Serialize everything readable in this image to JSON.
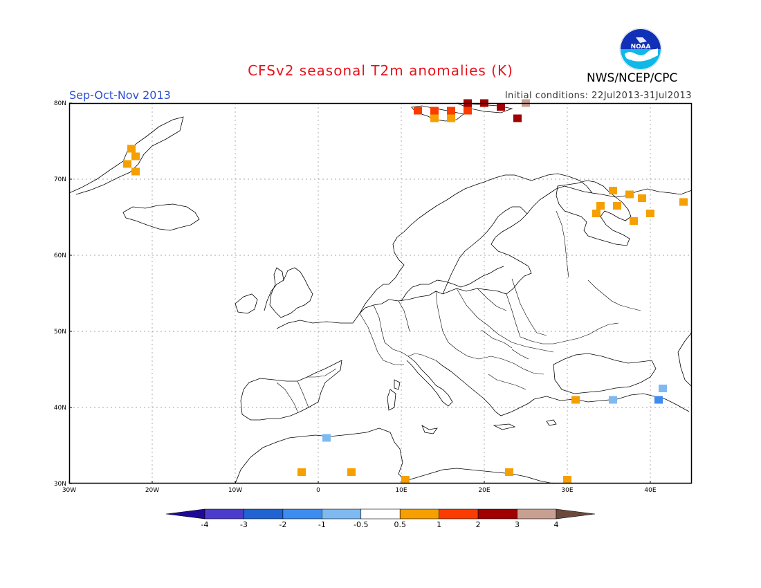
{
  "header": {
    "title": "CFSv2 seasonal T2m anomalies (K)",
    "season": "Sep-Oct-Nov 2013",
    "initial_conditions": "Initial conditions: 22Jul2013-31Jul2013",
    "agency": "NWS/NCEP/CPC",
    "logo_text": "NOAA"
  },
  "map": {
    "lon_range": [
      -30,
      45
    ],
    "lat_range": [
      30,
      80
    ],
    "lon_ticks": [
      "30W",
      "20W",
      "10W",
      "0",
      "10E",
      "20E",
      "30E",
      "40E"
    ],
    "lat_ticks": [
      "30N",
      "40N",
      "50N",
      "60N",
      "70N",
      "80N"
    ],
    "grid": "dotted every 10 degrees",
    "anomaly_cells": [
      {
        "lon": -22.5,
        "lat": 74.0,
        "anomaly": 0.8
      },
      {
        "lon": -22.0,
        "lat": 73.0,
        "anomaly": 0.8
      },
      {
        "lon": -23.0,
        "lat": 72.0,
        "anomaly": 0.8
      },
      {
        "lon": -22.0,
        "lat": 71.0,
        "anomaly": 0.8
      },
      {
        "lon": 12.0,
        "lat": 79.0,
        "anomaly": 1.5
      },
      {
        "lon": 14.0,
        "lat": 79.0,
        "anomaly": 1.5
      },
      {
        "lon": 16.0,
        "lat": 79.0,
        "anomaly": 1.5
      },
      {
        "lon": 18.0,
        "lat": 79.0,
        "anomaly": 1.5
      },
      {
        "lon": 14.0,
        "lat": 78.0,
        "anomaly": 0.8
      },
      {
        "lon": 16.0,
        "lat": 78.0,
        "anomaly": 0.8
      },
      {
        "lon": 18.0,
        "lat": 80.0,
        "anomaly": 2.5
      },
      {
        "lon": 20.0,
        "lat": 80.0,
        "anomaly": 2.5
      },
      {
        "lon": 22.0,
        "lat": 79.5,
        "anomaly": 2.5
      },
      {
        "lon": 24.0,
        "lat": 78.0,
        "anomaly": 2.5
      },
      {
        "lon": 25.0,
        "lat": 80.0,
        "anomaly": 3.5
      },
      {
        "lon": 35.5,
        "lat": 68.5,
        "anomaly": 0.8
      },
      {
        "lon": 37.5,
        "lat": 68.0,
        "anomaly": 0.8
      },
      {
        "lon": 39.0,
        "lat": 67.5,
        "anomaly": 0.8
      },
      {
        "lon": 34.0,
        "lat": 66.5,
        "anomaly": 0.8
      },
      {
        "lon": 36.0,
        "lat": 66.5,
        "anomaly": 0.8
      },
      {
        "lon": 33.5,
        "lat": 65.5,
        "anomaly": 0.8
      },
      {
        "lon": 38.0,
        "lat": 64.5,
        "anomaly": 0.8
      },
      {
        "lon": 40.0,
        "lat": 65.5,
        "anomaly": 0.8
      },
      {
        "lon": 44.0,
        "lat": 67.0,
        "anomaly": 0.8
      },
      {
        "lon": 31.0,
        "lat": 41.0,
        "anomaly": 0.8
      },
      {
        "lon": 35.5,
        "lat": 41.0,
        "anomaly": -0.8
      },
      {
        "lon": 41.5,
        "lat": 42.5,
        "anomaly": -0.8
      },
      {
        "lon": 41.0,
        "lat": 41.0,
        "anomaly": -1.5
      },
      {
        "lon": 1.0,
        "lat": 36.0,
        "anomaly": -0.8
      },
      {
        "lon": -2.0,
        "lat": 31.5,
        "anomaly": 0.8
      },
      {
        "lon": 4.0,
        "lat": 31.5,
        "anomaly": 0.8
      },
      {
        "lon": 10.5,
        "lat": 30.5,
        "anomaly": 0.8
      },
      {
        "lon": 23.0,
        "lat": 31.5,
        "anomaly": 0.8
      },
      {
        "lon": 30.0,
        "lat": 30.5,
        "anomaly": 0.8
      }
    ]
  },
  "colorbar": {
    "labels": [
      "-4",
      "-3",
      "-2",
      "-1",
      "-0.5",
      "0.5",
      "1",
      "2",
      "3",
      "4"
    ],
    "colors": [
      "#1e0a96",
      "#4c3ccc",
      "#1f64d2",
      "#3d8cf0",
      "#7eb9f2",
      "#ffffff",
      "#f5a000",
      "#fa3c00",
      "#a00000",
      "#c8a092",
      "#6b4a3c"
    ]
  }
}
